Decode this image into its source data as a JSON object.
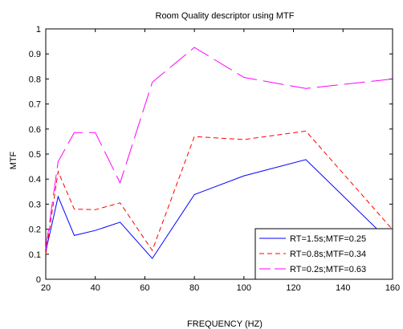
{
  "chart_data": {
    "type": "line",
    "title": "Room Quality descriptor using MTF",
    "xlabel": "FREQUENCY (HZ)",
    "ylabel": "MTF",
    "xlim": [
      20,
      160
    ],
    "ylim": [
      0,
      1
    ],
    "xticks": [
      20,
      40,
      60,
      80,
      100,
      120,
      140,
      160
    ],
    "yticks": [
      0,
      0.1,
      0.2,
      0.3,
      0.4,
      0.5,
      0.6,
      0.7,
      0.8,
      0.9,
      1
    ],
    "ytick_labels": [
      "0",
      "0.1",
      "0.2",
      "0.3",
      "0.4",
      "0.5",
      "0.6",
      "0.7",
      "0.8",
      "0.9",
      "1"
    ],
    "grid": false,
    "legend_position": "bottom-right",
    "series": [
      {
        "name": "RT=1.5s;MTF=0.25",
        "color": "#0000ff",
        "dash": "solid",
        "x": [
          20,
          25,
          31.5,
          40,
          50,
          63,
          80,
          100,
          125,
          160
        ],
        "y": [
          0.11,
          0.33,
          0.175,
          0.195,
          0.228,
          0.083,
          0.338,
          0.413,
          0.478,
          0.14
        ]
      },
      {
        "name": "RT=0.8s;MTF=0.34",
        "color": "#ff0000",
        "dash": "dashed",
        "x": [
          20,
          25,
          31.5,
          40,
          50,
          63,
          80,
          100,
          125,
          160
        ],
        "y": [
          0.1,
          0.43,
          0.28,
          0.278,
          0.305,
          0.115,
          0.57,
          0.558,
          0.592,
          0.198
        ]
      },
      {
        "name": "RT=0.2s;MTF=0.63",
        "color": "#ff00ff",
        "dash": "longdash",
        "x": [
          20,
          25,
          31.5,
          40,
          50,
          63,
          80,
          100,
          125,
          160
        ],
        "y": [
          0.12,
          0.47,
          0.586,
          0.586,
          0.385,
          0.787,
          0.926,
          0.806,
          0.762,
          0.8
        ]
      }
    ]
  }
}
